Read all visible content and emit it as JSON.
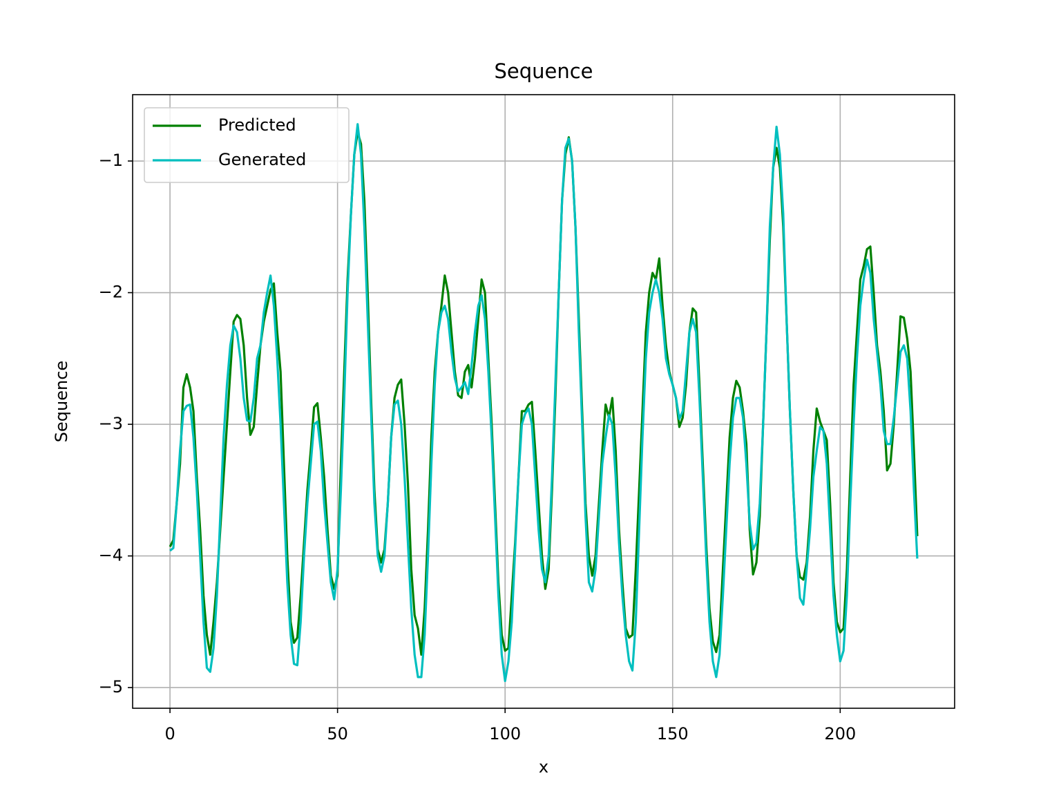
{
  "chart_data": {
    "type": "line",
    "title": "Sequence",
    "x_label": "x",
    "y_label": "Sequence",
    "x": [
      0,
      1,
      2,
      3,
      4,
      5,
      6,
      7,
      8,
      9,
      10,
      11,
      12,
      13,
      14,
      15,
      16,
      17,
      18,
      19,
      20,
      21,
      22,
      23,
      24,
      25,
      26,
      27,
      28,
      29,
      30,
      31,
      32,
      33,
      34,
      35,
      36,
      37,
      38,
      39,
      40,
      41,
      42,
      43,
      44,
      45,
      46,
      47,
      48,
      49,
      50,
      51,
      52,
      53,
      54,
      55,
      56,
      57,
      58,
      59,
      60,
      61,
      62,
      63,
      64,
      65,
      66,
      67,
      68,
      69,
      70,
      71,
      72,
      73,
      74,
      75,
      76,
      77,
      78,
      79,
      80,
      81,
      82,
      83,
      84,
      85,
      86,
      87,
      88,
      89,
      90,
      91,
      92,
      93,
      94,
      95,
      96,
      97,
      98,
      99,
      100,
      101,
      102,
      103,
      104,
      105,
      106,
      107,
      108,
      109,
      110,
      111,
      112,
      113,
      114,
      115,
      116,
      117,
      118,
      119,
      120,
      121,
      122,
      123,
      124,
      125,
      126,
      127,
      128,
      129,
      130,
      131,
      132,
      133,
      134,
      135,
      136,
      137,
      138,
      139,
      140,
      141,
      142,
      143,
      144,
      145,
      146,
      147,
      148,
      149,
      150,
      151,
      152,
      153,
      154,
      155,
      156,
      157,
      158,
      159,
      160,
      161,
      162,
      163,
      164,
      165,
      166,
      167,
      168,
      169,
      170,
      171,
      172,
      173,
      174,
      175,
      176,
      177,
      178,
      179,
      180,
      181,
      182,
      183,
      184,
      185,
      186,
      187,
      188,
      189,
      190,
      191,
      192,
      193,
      194,
      195,
      196,
      197,
      198,
      199,
      200,
      201,
      202,
      203,
      204,
      205,
      206,
      207,
      208,
      209,
      210,
      211,
      212,
      213,
      214,
      215,
      216,
      217,
      218,
      219,
      220,
      221,
      222,
      223
    ],
    "series": [
      {
        "name": "Predicted",
        "color": "#008000",
        "values": [
          -3.93,
          -3.88,
          -3.6,
          -3.3,
          -2.72,
          -2.62,
          -2.72,
          -2.9,
          -3.4,
          -3.8,
          -4.3,
          -4.6,
          -4.75,
          -4.5,
          -4.2,
          -3.8,
          -3.4,
          -3.0,
          -2.6,
          -2.22,
          -2.17,
          -2.2,
          -2.4,
          -2.8,
          -3.08,
          -3.02,
          -2.7,
          -2.4,
          -2.22,
          -2.1,
          -1.98,
          -1.93,
          -2.3,
          -2.6,
          -3.3,
          -4.0,
          -4.5,
          -4.66,
          -4.62,
          -4.3,
          -3.9,
          -3.5,
          -3.2,
          -2.87,
          -2.84,
          -3.1,
          -3.4,
          -3.8,
          -4.15,
          -4.25,
          -4.15,
          -3.3,
          -2.6,
          -1.9,
          -1.4,
          -0.95,
          -0.78,
          -0.87,
          -1.3,
          -2.0,
          -2.8,
          -3.5,
          -3.95,
          -4.05,
          -3.95,
          -3.6,
          -3.1,
          -2.8,
          -2.7,
          -2.66,
          -3.0,
          -3.45,
          -4.1,
          -4.45,
          -4.55,
          -4.75,
          -4.4,
          -3.8,
          -3.1,
          -2.6,
          -2.3,
          -2.1,
          -1.87,
          -2.0,
          -2.3,
          -2.6,
          -2.78,
          -2.8,
          -2.6,
          -2.55,
          -2.72,
          -2.5,
          -2.2,
          -1.9,
          -2.0,
          -2.5,
          -3.0,
          -3.6,
          -4.2,
          -4.6,
          -4.72,
          -4.7,
          -4.3,
          -3.9,
          -3.4,
          -2.9,
          -2.9,
          -2.85,
          -2.83,
          -3.2,
          -3.6,
          -4.0,
          -4.25,
          -4.1,
          -3.5,
          -2.8,
          -2.0,
          -1.3,
          -0.95,
          -0.82,
          -1.0,
          -1.5,
          -2.2,
          -2.9,
          -3.6,
          -4.0,
          -4.15,
          -4.0,
          -3.6,
          -3.2,
          -2.85,
          -2.95,
          -2.8,
          -3.2,
          -3.8,
          -4.2,
          -4.55,
          -4.62,
          -4.6,
          -4.1,
          -3.5,
          -2.9,
          -2.3,
          -2.0,
          -1.85,
          -1.9,
          -1.74,
          -2.1,
          -2.4,
          -2.6,
          -2.7,
          -2.8,
          -3.02,
          -2.95,
          -2.7,
          -2.3,
          -2.12,
          -2.15,
          -2.7,
          -3.3,
          -3.9,
          -4.4,
          -4.65,
          -4.73,
          -4.6,
          -4.1,
          -3.6,
          -3.1,
          -2.8,
          -2.67,
          -2.72,
          -2.9,
          -3.15,
          -3.8,
          -4.14,
          -4.05,
          -3.7,
          -3.0,
          -2.3,
          -1.6,
          -1.05,
          -0.9,
          -1.05,
          -1.5,
          -2.2,
          -2.9,
          -3.5,
          -4.0,
          -4.16,
          -4.18,
          -4.05,
          -3.7,
          -3.2,
          -2.88,
          -2.98,
          -3.05,
          -3.12,
          -3.6,
          -4.2,
          -4.5,
          -4.58,
          -4.55,
          -4.1,
          -3.4,
          -2.7,
          -2.3,
          -1.9,
          -1.8,
          -1.67,
          -1.65,
          -2.0,
          -2.4,
          -2.6,
          -2.9,
          -3.35,
          -3.3,
          -3.0,
          -2.6,
          -2.18,
          -2.19,
          -2.35,
          -2.6,
          -3.2,
          -3.85
        ]
      },
      {
        "name": "Generated",
        "color": "#00bfbf",
        "values": [
          -3.96,
          -3.94,
          -3.6,
          -3.2,
          -2.9,
          -2.86,
          -2.85,
          -3.1,
          -3.5,
          -4.0,
          -4.5,
          -4.85,
          -4.88,
          -4.7,
          -4.3,
          -3.7,
          -3.1,
          -2.7,
          -2.4,
          -2.25,
          -2.3,
          -2.5,
          -2.8,
          -2.97,
          -2.98,
          -2.8,
          -2.5,
          -2.4,
          -2.15,
          -2.0,
          -1.87,
          -2.1,
          -2.5,
          -3.0,
          -3.6,
          -4.2,
          -4.6,
          -4.82,
          -4.83,
          -4.5,
          -4.0,
          -3.6,
          -3.3,
          -3.0,
          -2.98,
          -3.2,
          -3.6,
          -3.9,
          -4.2,
          -4.33,
          -4.1,
          -3.5,
          -2.8,
          -2.0,
          -1.4,
          -0.95,
          -0.72,
          -0.95,
          -1.5,
          -2.2,
          -2.9,
          -3.6,
          -4.0,
          -4.12,
          -4.0,
          -3.6,
          -3.1,
          -2.85,
          -2.82,
          -3.0,
          -3.4,
          -3.9,
          -4.4,
          -4.75,
          -4.92,
          -4.92,
          -4.6,
          -4.0,
          -3.3,
          -2.7,
          -2.3,
          -2.15,
          -2.1,
          -2.2,
          -2.45,
          -2.65,
          -2.75,
          -2.72,
          -2.68,
          -2.77,
          -2.55,
          -2.3,
          -2.1,
          -2.02,
          -2.2,
          -2.6,
          -3.1,
          -3.7,
          -4.3,
          -4.75,
          -4.95,
          -4.8,
          -4.5,
          -3.95,
          -3.4,
          -3.0,
          -2.92,
          -2.88,
          -3.0,
          -3.4,
          -3.8,
          -4.1,
          -4.2,
          -4.0,
          -3.4,
          -2.7,
          -2.0,
          -1.3,
          -0.9,
          -0.83,
          -1.0,
          -1.5,
          -2.3,
          -3.0,
          -3.7,
          -4.2,
          -4.27,
          -4.1,
          -3.7,
          -3.3,
          -3.1,
          -2.93,
          -3.0,
          -3.4,
          -3.9,
          -4.3,
          -4.6,
          -4.8,
          -4.87,
          -4.5,
          -3.8,
          -3.1,
          -2.5,
          -2.15,
          -2.0,
          -1.9,
          -2.0,
          -2.2,
          -2.5,
          -2.62,
          -2.7,
          -2.8,
          -2.96,
          -2.9,
          -2.6,
          -2.3,
          -2.2,
          -2.3,
          -2.8,
          -3.4,
          -4.0,
          -4.5,
          -4.8,
          -4.92,
          -4.75,
          -4.3,
          -3.8,
          -3.3,
          -2.95,
          -2.8,
          -2.8,
          -2.95,
          -3.3,
          -3.75,
          -3.95,
          -3.9,
          -3.6,
          -3.0,
          -2.3,
          -1.5,
          -1.05,
          -0.74,
          -0.95,
          -1.4,
          -2.2,
          -2.9,
          -3.5,
          -4.0,
          -4.32,
          -4.37,
          -4.1,
          -3.8,
          -3.4,
          -3.2,
          -3.02,
          -3.05,
          -3.3,
          -3.8,
          -4.3,
          -4.6,
          -4.8,
          -4.72,
          -4.3,
          -3.6,
          -3.0,
          -2.5,
          -2.1,
          -1.9,
          -1.75,
          -1.85,
          -2.2,
          -2.45,
          -2.7,
          -3.05,
          -3.15,
          -3.15,
          -2.95,
          -2.7,
          -2.45,
          -2.4,
          -2.5,
          -2.9,
          -3.5,
          -4.02
        ]
      }
    ],
    "xlim": [
      -11.15,
      234.15
    ],
    "ylim": [
      -5.157,
      -0.496
    ],
    "xticks": [
      0,
      50,
      100,
      150,
      200
    ],
    "yticks": [
      {
        "value": -5,
        "label": "−5"
      },
      {
        "value": -4,
        "label": "−4"
      },
      {
        "value": -3,
        "label": "−3"
      },
      {
        "value": -2,
        "label": "−2"
      },
      {
        "value": -1,
        "label": "−1"
      }
    ],
    "grid": true,
    "legend": "upper-left"
  }
}
